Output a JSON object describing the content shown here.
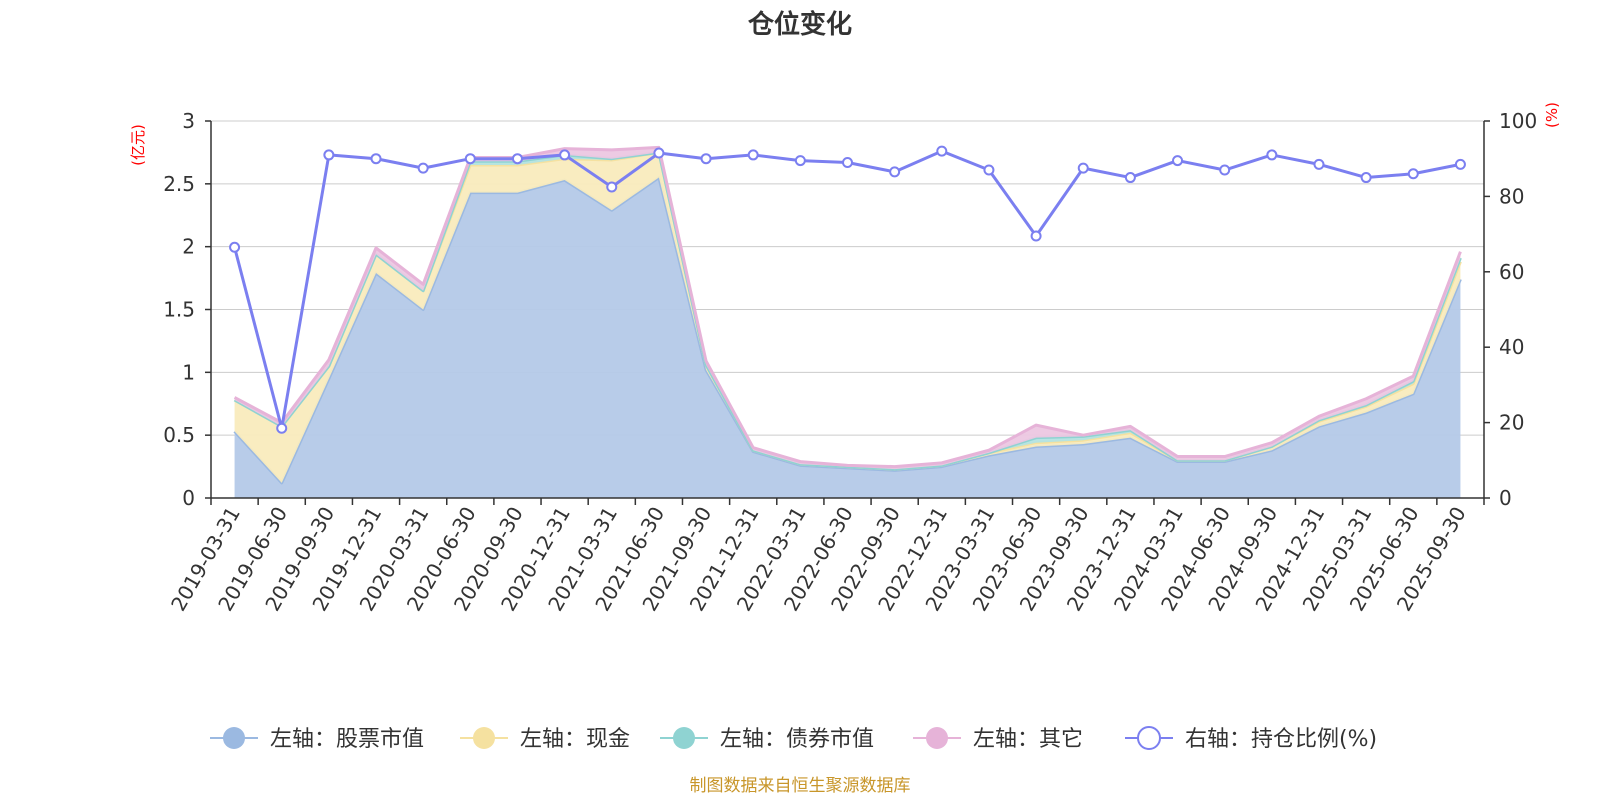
{
  "chart_data": {
    "type": "area",
    "title": "仓位变化",
    "left_axis_unit": "(亿元)",
    "right_axis_unit": "(%)",
    "left_ylim": [
      0,
      3
    ],
    "left_ticks": [
      "0",
      "0.5",
      "1",
      "1.5",
      "2",
      "2.5",
      "3"
    ],
    "right_ylim": [
      0,
      100
    ],
    "right_ticks": [
      "0",
      "20",
      "40",
      "60",
      "80",
      "100"
    ],
    "categories": [
      "2019-03-31",
      "2019-06-30",
      "2019-09-30",
      "2019-12-31",
      "2020-03-31",
      "2020-06-30",
      "2020-09-30",
      "2020-12-31",
      "2021-03-31",
      "2021-06-30",
      "2021-09-30",
      "2021-12-31",
      "2022-03-31",
      "2022-06-30",
      "2022-09-30",
      "2022-12-31",
      "2023-03-31",
      "2023-06-30",
      "2023-09-30",
      "2023-12-31",
      "2024-03-31",
      "2024-06-30",
      "2024-09-30",
      "2024-12-31",
      "2025-03-31",
      "2025-06-30",
      "2025-09-30"
    ],
    "series": [
      {
        "name": "左轴：股票市值",
        "axis": "left",
        "color": "#9bb9e1",
        "fill": "#b4c9e8",
        "values": [
          0.53,
          0.12,
          0.95,
          1.79,
          1.5,
          2.43,
          2.43,
          2.53,
          2.29,
          2.55,
          1.02,
          0.37,
          0.26,
          0.24,
          0.22,
          0.25,
          0.34,
          0.41,
          0.43,
          0.48,
          0.29,
          0.29,
          0.38,
          0.57,
          0.68,
          0.83,
          1.74
        ]
      },
      {
        "name": "左轴：现金",
        "axis": "left",
        "color": "#f5e1a0",
        "fill": "#f9ebbd",
        "values": [
          0.25,
          0.45,
          0.1,
          0.15,
          0.15,
          0.22,
          0.22,
          0.17,
          0.4,
          0.2,
          0.04,
          0.01,
          0.01,
          0.01,
          0.01,
          0.01,
          0.02,
          0.03,
          0.03,
          0.04,
          0.01,
          0.01,
          0.03,
          0.04,
          0.05,
          0.08,
          0.14
        ]
      },
      {
        "name": "左轴：债券市值",
        "axis": "left",
        "color": "#8fd3d2",
        "fill": "#b3e3e2",
        "values": [
          0.0,
          0.0,
          0.0,
          0.0,
          0.0,
          0.03,
          0.03,
          0.03,
          0.01,
          0.0,
          0.0,
          0.0,
          0.0,
          0.0,
          0.0,
          0.0,
          0.0,
          0.04,
          0.03,
          0.02,
          0.0,
          0.0,
          0.0,
          0.01,
          0.01,
          0.02,
          0.03
        ]
      },
      {
        "name": "左轴：其它",
        "axis": "left",
        "color": "#e6b3d8",
        "fill": "#ecc7e2",
        "values": [
          0.02,
          0.03,
          0.05,
          0.05,
          0.05,
          0.03,
          0.03,
          0.05,
          0.07,
          0.04,
          0.03,
          0.02,
          0.02,
          0.01,
          0.02,
          0.02,
          0.02,
          0.1,
          0.01,
          0.03,
          0.03,
          0.03,
          0.03,
          0.03,
          0.05,
          0.04,
          0.05
        ]
      },
      {
        "name": "右轴：持仓比例(%)",
        "axis": "right",
        "color": "#7b7ff0",
        "values": [
          66.5,
          18.5,
          91.0,
          90.0,
          87.5,
          90.0,
          90.0,
          91.0,
          82.5,
          91.5,
          90.0,
          91.0,
          89.5,
          89.0,
          86.5,
          92.0,
          87.0,
          69.5,
          87.5,
          85.0,
          89.5,
          87.0,
          91.0,
          88.5,
          85.0,
          86.0,
          88.5
        ]
      }
    ],
    "legend_position": "bottom",
    "grid": true
  },
  "footer": {
    "source_text": "制图数据来自恒生聚源数据库"
  }
}
